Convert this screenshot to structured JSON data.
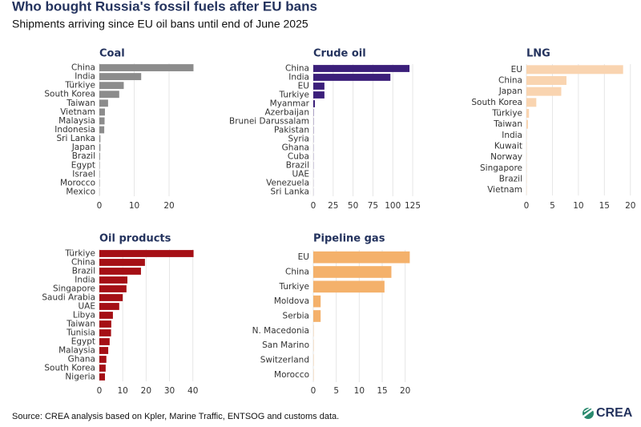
{
  "title": "Who bought Russia's fossil fuels after EU bans",
  "subtitle": "Shipments arriving since EU oil bans until end of June 2025",
  "source": "Source: CREA analysis based on Kpler, Marine Traffic, ENTSOG and customs data.",
  "logo": "CREA",
  "chart_data": [
    {
      "type": "bar",
      "orientation": "horizontal",
      "title": "Coal",
      "color": "#8c8c8c",
      "grid": true,
      "categories": [
        "China",
        "India",
        "Türkiye",
        "South Korea",
        "Taiwan",
        "Vietnam",
        "Malaysia",
        "Indonesia",
        "Sri Lanka",
        "Japan",
        "Brazil",
        "Egypt",
        "Israel",
        "Morocco",
        "Mexico"
      ],
      "values": [
        27,
        12,
        7,
        5.7,
        2.5,
        1.6,
        1.5,
        1.4,
        0.3,
        0.3,
        0.2,
        0.1,
        0.1,
        0.1,
        0.05
      ],
      "xlim": [
        0,
        28.5
      ],
      "xticks": [
        0,
        10,
        20
      ]
    },
    {
      "type": "bar",
      "orientation": "horizontal",
      "title": "Crude oil",
      "color": "#3b1f7a",
      "grid": true,
      "categories": [
        "China",
        "India",
        "EU",
        "Turkiye",
        "Myanmar",
        "Azerbaijan",
        "Brunei Darussalam",
        "Pakistan",
        "Syria",
        "Ghana",
        "Cuba",
        "Brazil",
        "UAE",
        "Venezuela",
        "Sri Lanka"
      ],
      "values": [
        121,
        97,
        14,
        14,
        2,
        0.4,
        0.3,
        0.3,
        0.2,
        0.2,
        0.2,
        0.2,
        0.1,
        0.1,
        0.1
      ],
      "xlim": [
        0,
        130
      ],
      "xticks": [
        0,
        25,
        50,
        75,
        100,
        125
      ]
    },
    {
      "type": "bar",
      "orientation": "horizontal",
      "title": "LNG",
      "color": "#f9d4b0",
      "grid": true,
      "categories": [
        "EU",
        "China",
        "Japan",
        "South Korea",
        "Türkiye",
        "Taiwan",
        "India",
        "Kuwait",
        "Norway",
        "Singapore",
        "Brazil",
        "Vietnam"
      ],
      "values": [
        18.6,
        7.7,
        6.7,
        1.9,
        0.5,
        0.3,
        0.05,
        0.05,
        0.05,
        0.05,
        0.05,
        0.05
      ],
      "xlim": [
        0,
        20.5
      ],
      "xticks": [
        0,
        5,
        10,
        15,
        20
      ]
    },
    {
      "type": "bar",
      "orientation": "horizontal",
      "title": "Oil products",
      "color": "#a50f15",
      "grid": true,
      "categories": [
        "Türkiye",
        "China",
        "Brazil",
        "India",
        "Singapore",
        "Saudi Arabia",
        "UAE",
        "Libya",
        "Taiwan",
        "Tunisia",
        "Egypt",
        "Malaysia",
        "Ghana",
        "South Korea",
        "Nigeria"
      ],
      "values": [
        40.3,
        19.5,
        17.8,
        12,
        11.6,
        10,
        8.5,
        5.8,
        5.1,
        5,
        4.4,
        3.8,
        3,
        2.7,
        2.4
      ],
      "xlim": [
        0,
        42.5
      ],
      "xticks": [
        0,
        10,
        20,
        30,
        40
      ]
    },
    {
      "type": "bar",
      "orientation": "horizontal",
      "title": "Pipeline gas",
      "color": "#f4b16b",
      "grid": true,
      "categories": [
        "EU",
        "China",
        "Turkiye",
        "Moldova",
        "Serbia",
        "N. Macedonia",
        "San Marino",
        "Switzerland",
        "Morocco"
      ],
      "values": [
        21,
        17,
        15.5,
        1.6,
        1.6,
        0.05,
        0.05,
        0.05,
        0.05
      ],
      "xlim": [
        0,
        22.5
      ],
      "xticks": [
        0,
        5,
        10,
        15,
        20
      ]
    }
  ]
}
